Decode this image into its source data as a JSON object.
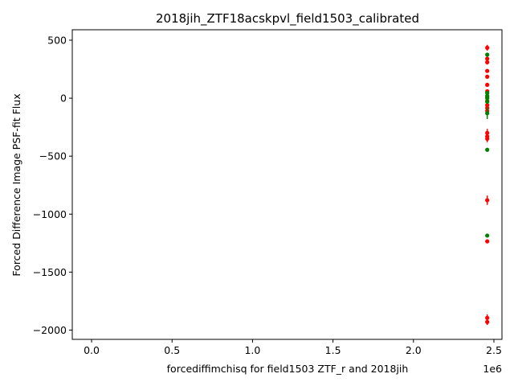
{
  "chart_data": {
    "type": "scatter",
    "title": "2018jih_ZTF18acskpvl_field1503_calibrated",
    "xlabel": "forcediffimchisq for field1503 ZTF_r and 2018jih",
    "ylabel": "Forced Difference Image PSF-fit Flux",
    "x_offset_label": "1e6",
    "xlim": [
      -0.12,
      2.55
    ],
    "ylim": [
      -2080,
      590
    ],
    "x_ticks": [
      0.0,
      0.5,
      1.0,
      1.5,
      2.0,
      2.5
    ],
    "x_tick_labels": [
      "0.0",
      "0.5",
      "1.0",
      "1.5",
      "2.0",
      "2.5"
    ],
    "y_ticks": [
      500,
      0,
      -500,
      -1000,
      -1500,
      -2000
    ],
    "y_tick_labels": [
      "500",
      "0",
      "−500",
      "−1000",
      "−1500",
      "−2000"
    ],
    "grid": false,
    "series": [
      {
        "color": "#ff0000",
        "points": [
          {
            "x": 2.4585,
            "y": 435,
            "err": 25
          },
          {
            "x": 2.4585,
            "y": 340,
            "err": 20
          },
          {
            "x": 2.4585,
            "y": 310,
            "err": 20
          },
          {
            "x": 2.4585,
            "y": 235,
            "err": 15
          },
          {
            "x": 2.4585,
            "y": 185,
            "err": 15
          },
          {
            "x": 2.4585,
            "y": 115,
            "err": 15
          },
          {
            "x": 2.4585,
            "y": 60,
            "err": 15
          },
          {
            "x": 2.4585,
            "y": 10,
            "err": 15
          },
          {
            "x": 2.4585,
            "y": -25,
            "err": 15
          },
          {
            "x": 2.4585,
            "y": -60,
            "err": 15
          },
          {
            "x": 2.4585,
            "y": -85,
            "err": 15
          },
          {
            "x": 2.4585,
            "y": -110,
            "err": 15
          },
          {
            "x": 2.4585,
            "y": -300,
            "err": 35
          },
          {
            "x": 2.4585,
            "y": -330,
            "err": 35
          },
          {
            "x": 2.4585,
            "y": -350,
            "err": 30
          },
          {
            "x": 2.4585,
            "y": -880,
            "err": 40
          },
          {
            "x": 2.4585,
            "y": -1235,
            "err": 15
          },
          {
            "x": 2.4585,
            "y": -1895,
            "err": 30
          },
          {
            "x": 2.4585,
            "y": -1930,
            "err": 25
          }
        ]
      },
      {
        "color": "#008000",
        "points": [
          {
            "x": 2.4585,
            "y": 375,
            "err": 15
          },
          {
            "x": 2.4585,
            "y": 45,
            "err": 15
          },
          {
            "x": 2.4585,
            "y": 20,
            "err": 15
          },
          {
            "x": 2.4585,
            "y": 0,
            "err": 15
          },
          {
            "x": 2.4585,
            "y": -30,
            "err": 15
          },
          {
            "x": 2.4585,
            "y": -130,
            "err": 50
          },
          {
            "x": 2.4585,
            "y": -445,
            "err": 15
          },
          {
            "x": 2.4585,
            "y": -1185,
            "err": 15
          }
        ]
      }
    ]
  }
}
